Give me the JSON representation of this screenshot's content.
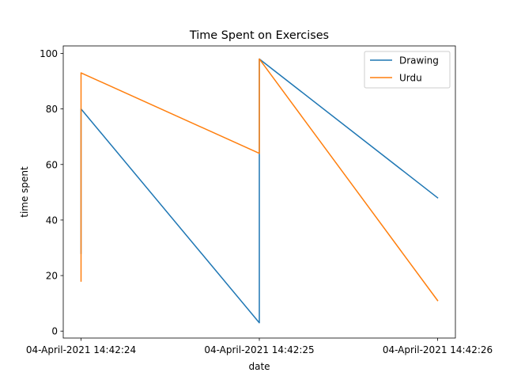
{
  "chart_data": {
    "type": "line",
    "title": "Time Spent on Exercises",
    "xlabel": "date",
    "ylabel": "time spent",
    "x_ticks": [
      "04-April-2021  14:42:24",
      "04-April-2021  14:42:25",
      "04-April-2021  14:42:26"
    ],
    "y_ticks": [
      0,
      20,
      40,
      60,
      80,
      100
    ],
    "ylim": [
      -2.5,
      102.7
    ],
    "grid": false,
    "legend_position": "top-right",
    "series": [
      {
        "name": "Drawing",
        "color": "#1f77b4",
        "points": [
          [
            "14:42:24",
            28
          ],
          [
            "14:42:24",
            80
          ],
          [
            "14:42:25",
            3
          ],
          [
            "14:42:25",
            98
          ],
          [
            "14:42:26",
            48
          ]
        ]
      },
      {
        "name": "Urdu",
        "color": "#ff7f0e",
        "points": [
          [
            "14:42:24",
            18
          ],
          [
            "14:42:24",
            93
          ],
          [
            "14:42:25",
            64
          ],
          [
            "14:42:25",
            98
          ],
          [
            "14:42:26",
            11
          ]
        ]
      }
    ]
  }
}
